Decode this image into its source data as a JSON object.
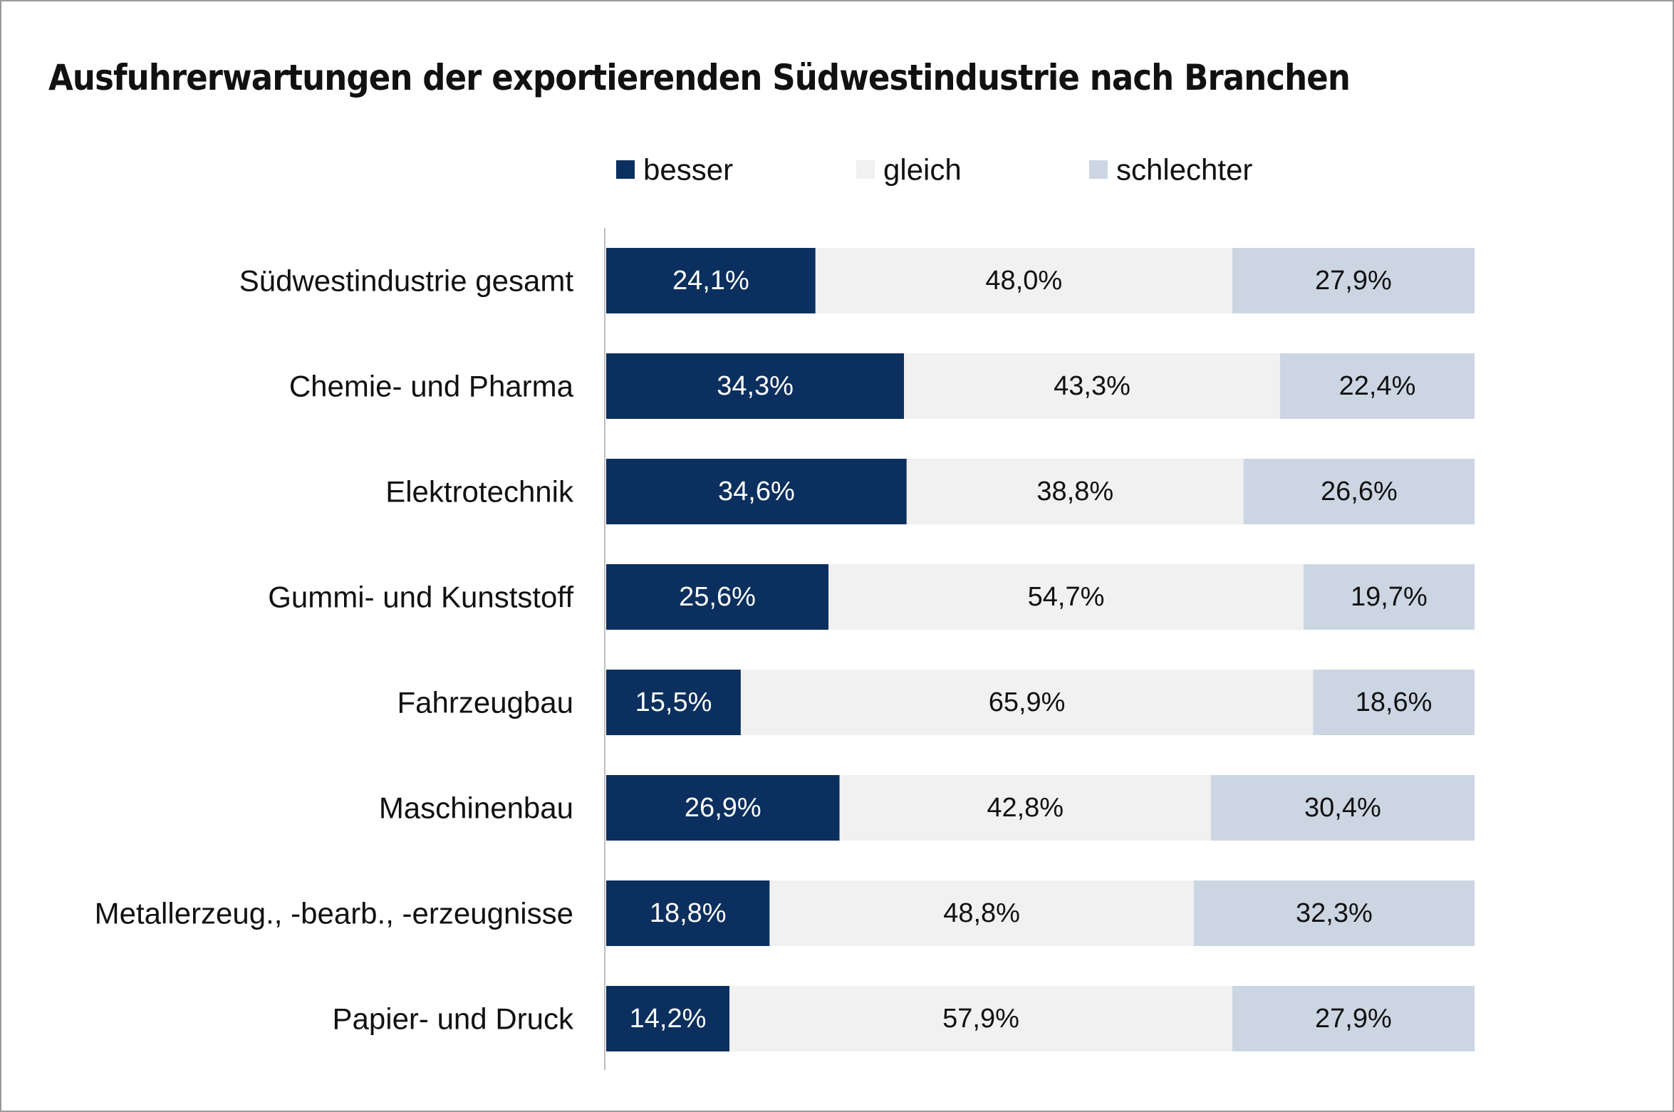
{
  "title": "Ausfuhrerwartungen der exportierenden Südwestindustrie nach Branchen",
  "colors": {
    "besser": "#0b2f5e",
    "gleich": "#f1f1f1",
    "schlechter": "#ccd6e3",
    "label_dark_bg": "#ffffff",
    "label_light_bg": "#111111",
    "axis": "#bdbdbd"
  },
  "chart_data": {
    "type": "bar",
    "orientation": "horizontal",
    "stacked": true,
    "title": "Ausfuhrerwartungen der exportierenden Südwestindustrie nach Branchen",
    "xlabel": "",
    "ylabel": "",
    "xlim": [
      0,
      100
    ],
    "legend_position": "top",
    "categories": [
      "Südwestindustrie gesamt",
      "Chemie- und Pharma",
      "Elektrotechnik",
      "Gummi- und Kunststoff",
      "Fahrzeugbau",
      "Maschinenbau",
      "Metallerzeug., -bearb., -erzeugnisse",
      "Papier- und Druck"
    ],
    "series": [
      {
        "name": "besser",
        "values": [
          24.1,
          34.3,
          34.6,
          25.6,
          15.5,
          26.9,
          18.8,
          14.2
        ],
        "labels": [
          "24,1%",
          "34,3%",
          "34,6%",
          "25,6%",
          "15,5%",
          "26,9%",
          "18,8%",
          "14,2%"
        ]
      },
      {
        "name": "gleich",
        "values": [
          48.0,
          43.3,
          38.8,
          54.7,
          65.9,
          42.8,
          48.8,
          57.9
        ],
        "labels": [
          "48,0%",
          "43,3%",
          "38,8%",
          "54,7%",
          "65,9%",
          "42,8%",
          "48,8%",
          "57,9%"
        ]
      },
      {
        "name": "schlechter",
        "values": [
          27.9,
          22.4,
          26.6,
          19.7,
          18.6,
          30.4,
          32.3,
          27.9
        ],
        "labels": [
          "27,9%",
          "22,4%",
          "26,6%",
          "19,7%",
          "18,6%",
          "30,4%",
          "32,3%",
          "27,9%"
        ]
      }
    ]
  }
}
